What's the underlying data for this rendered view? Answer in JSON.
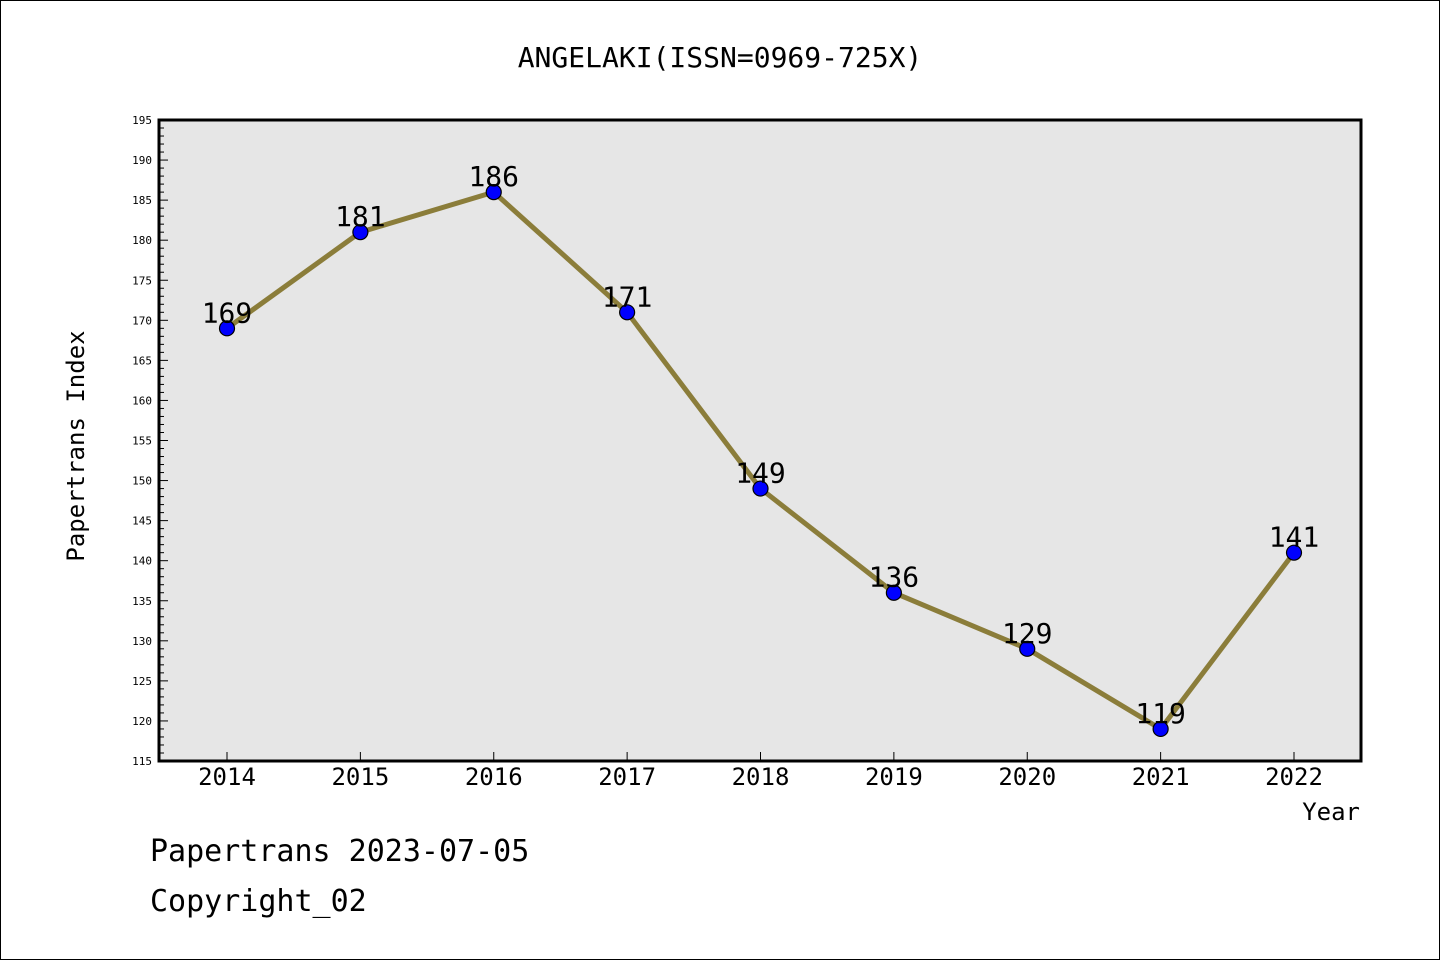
{
  "chart_data": {
    "type": "line",
    "title": "ANGELAKI(ISSN=0969-725X)",
    "xlabel": "Year",
    "ylabel": "Papertrans Index",
    "categories": [
      "2014",
      "2015",
      "2016",
      "2017",
      "2018",
      "2019",
      "2020",
      "2021",
      "2022"
    ],
    "values": [
      169,
      181,
      186,
      171,
      149,
      136,
      129,
      119,
      141
    ],
    "data_labels": [
      "169",
      "181",
      "186",
      "171",
      "149",
      "136",
      "129",
      "119",
      "141"
    ],
    "ylim": [
      115,
      195
    ],
    "yticks": [
      "115",
      "120",
      "125",
      "130",
      "135",
      "140",
      "145",
      "150",
      "155",
      "160",
      "165",
      "170",
      "175",
      "180",
      "185",
      "190",
      "195"
    ],
    "grid": false,
    "colors": {
      "line": "#8b7d3a",
      "marker": "#0000ff",
      "plot_bg": "#e6e6e6"
    }
  },
  "footer": {
    "line1": "Papertrans 2023-07-05",
    "line2": "Copyright_02"
  }
}
